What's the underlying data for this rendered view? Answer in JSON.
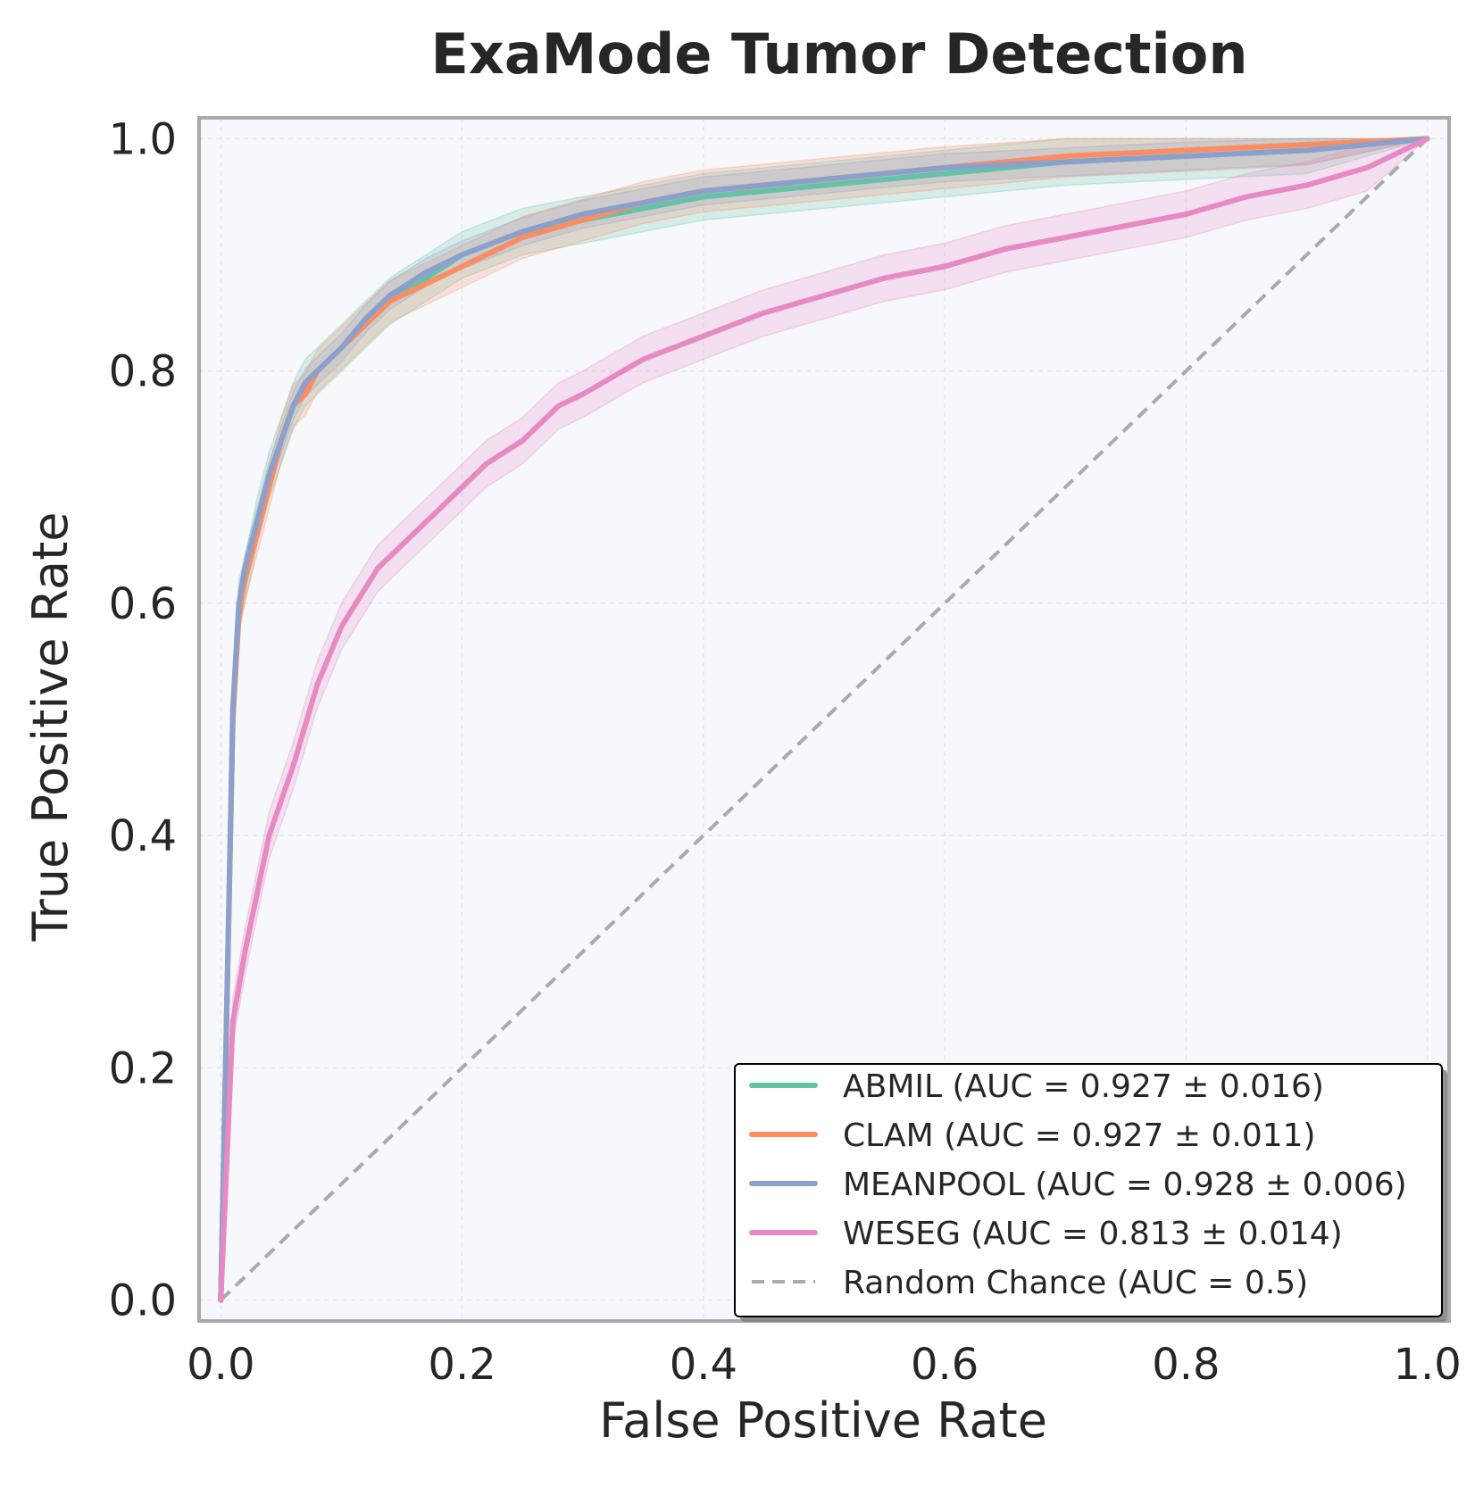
{
  "chart_data": {
    "type": "line",
    "title": "ExaMode Tumor Detection",
    "xlabel": "False Positive Rate",
    "ylabel": "True Positive Rate",
    "xlim": [
      -0.018,
      1.018
    ],
    "ylim": [
      -0.018,
      1.018
    ],
    "xticks": [
      0.0,
      0.2,
      0.4,
      0.6,
      0.8,
      1.0
    ],
    "yticks": [
      0.0,
      0.2,
      0.4,
      0.6,
      0.8,
      1.0
    ],
    "xtick_labels": [
      "0.0",
      "0.2",
      "0.4",
      "0.6",
      "0.8",
      "1.0"
    ],
    "ytick_labels": [
      "0.0",
      "0.2",
      "0.4",
      "0.6",
      "0.8",
      "1.0"
    ],
    "grid": true,
    "legend_position": "lower-right",
    "series": [
      {
        "name": "ABMIL",
        "legend_label": "ABMIL (AUC = 0.927 ± 0.016)",
        "color": "#66c2a5",
        "band": 0.02,
        "x": [
          0.0,
          0.01,
          0.015,
          0.02,
          0.03,
          0.04,
          0.05,
          0.06,
          0.07,
          0.08,
          0.1,
          0.12,
          0.14,
          0.17,
          0.2,
          0.25,
          0.3,
          0.35,
          0.4,
          0.5,
          0.6,
          0.7,
          0.8,
          0.9,
          1.0
        ],
        "y": [
          0.0,
          0.5,
          0.6,
          0.62,
          0.67,
          0.71,
          0.74,
          0.77,
          0.79,
          0.8,
          0.82,
          0.84,
          0.86,
          0.88,
          0.9,
          0.92,
          0.93,
          0.94,
          0.95,
          0.96,
          0.97,
          0.98,
          0.985,
          0.99,
          1.0
        ]
      },
      {
        "name": "CLAM",
        "legend_label": "CLAM (AUC = 0.927 ± 0.011)",
        "color": "#fc8d62",
        "band": 0.018,
        "x": [
          0.0,
          0.01,
          0.015,
          0.02,
          0.03,
          0.04,
          0.05,
          0.06,
          0.07,
          0.08,
          0.1,
          0.12,
          0.14,
          0.17,
          0.2,
          0.25,
          0.3,
          0.35,
          0.4,
          0.5,
          0.6,
          0.7,
          0.8,
          0.9,
          1.0
        ],
        "y": [
          0.0,
          0.5,
          0.59,
          0.62,
          0.66,
          0.7,
          0.74,
          0.77,
          0.78,
          0.8,
          0.82,
          0.84,
          0.86,
          0.875,
          0.89,
          0.915,
          0.93,
          0.945,
          0.955,
          0.965,
          0.975,
          0.985,
          0.99,
          0.995,
          1.0
        ]
      },
      {
        "name": "MEANPOOL",
        "legend_label": "MEANPOOL (AUC = 0.928 ± 0.006)",
        "color": "#8da0cb",
        "band": 0.012,
        "x": [
          0.0,
          0.01,
          0.015,
          0.02,
          0.03,
          0.04,
          0.05,
          0.06,
          0.07,
          0.08,
          0.1,
          0.12,
          0.14,
          0.17,
          0.2,
          0.25,
          0.3,
          0.35,
          0.4,
          0.5,
          0.6,
          0.7,
          0.8,
          0.9,
          1.0
        ],
        "y": [
          0.0,
          0.51,
          0.6,
          0.63,
          0.67,
          0.71,
          0.74,
          0.77,
          0.79,
          0.8,
          0.82,
          0.845,
          0.865,
          0.885,
          0.9,
          0.92,
          0.935,
          0.945,
          0.955,
          0.965,
          0.975,
          0.98,
          0.985,
          0.99,
          1.0
        ]
      },
      {
        "name": "WESEG",
        "legend_label": "WESEG (AUC = 0.813 ± 0.014)",
        "color": "#e78ac3",
        "band": 0.02,
        "x": [
          0.0,
          0.01,
          0.02,
          0.04,
          0.06,
          0.08,
          0.1,
          0.13,
          0.15,
          0.18,
          0.2,
          0.22,
          0.25,
          0.28,
          0.3,
          0.35,
          0.4,
          0.45,
          0.5,
          0.55,
          0.6,
          0.65,
          0.7,
          0.75,
          0.8,
          0.85,
          0.9,
          0.95,
          1.0
        ],
        "y": [
          0.0,
          0.24,
          0.3,
          0.4,
          0.46,
          0.53,
          0.58,
          0.63,
          0.65,
          0.68,
          0.7,
          0.72,
          0.74,
          0.77,
          0.78,
          0.81,
          0.83,
          0.85,
          0.865,
          0.88,
          0.89,
          0.905,
          0.915,
          0.925,
          0.935,
          0.95,
          0.96,
          0.975,
          1.0
        ]
      }
    ],
    "reference_line": {
      "name": "Random Chance",
      "legend_label": "Random Chance (AUC = 0.5)",
      "color": "#aaaaaa",
      "x": [
        0.0,
        1.0
      ],
      "y": [
        0.0,
        1.0
      ]
    }
  }
}
